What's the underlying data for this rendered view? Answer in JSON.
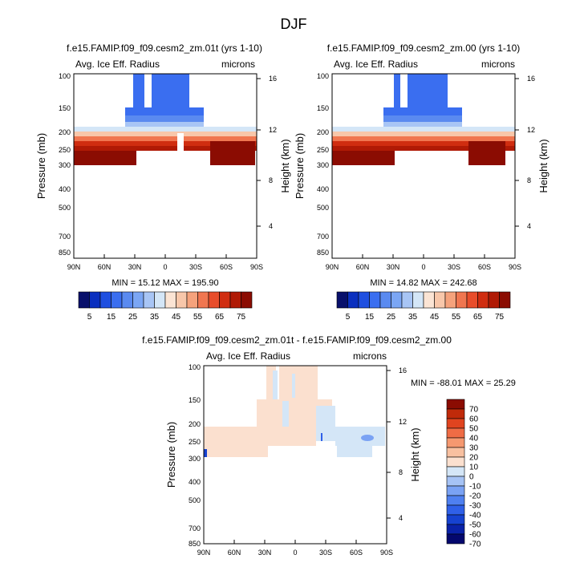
{
  "page": {
    "title": "DJF"
  },
  "colors": {
    "scale": [
      "#08106b",
      "#0a2fbf",
      "#1f4fe0",
      "#3a6ef0",
      "#5a8af0",
      "#7ba6f4",
      "#a8c5f5",
      "#d4e6f7",
      "#fbe4d4",
      "#f8c7aa",
      "#f5a27c",
      "#f07650",
      "#e84d2b",
      "#d02d10",
      "#b01a05",
      "#8b0c02"
    ],
    "diff_scale": [
      "#04086e",
      "#0a22a8",
      "#1642d0",
      "#2f60e8",
      "#4f80f0",
      "#7aa2f4",
      "#a6c3f5",
      "#d4e6f7",
      "#fbe0cf",
      "#f8c0a0",
      "#f59870",
      "#ef6c45",
      "#e0441f",
      "#c02a0a",
      "#8b0c02"
    ]
  },
  "chart_data": [
    {
      "type": "heatmap",
      "id": "panel-left",
      "title": "f.e15.FAMIP.f09_f09.cesm2_zm.01t (yrs 1-10)",
      "variable": "Avg. Ice Eff. Radius",
      "units": "microns",
      "ylabel_left": "Pressure (mb)",
      "ylabel_right": "Height (km)",
      "x_ticks": [
        "90N",
        "60N",
        "30N",
        "0",
        "30S",
        "60S",
        "90S"
      ],
      "y_ticks_pressure": [
        100,
        150,
        200,
        250,
        300,
        400,
        500,
        700,
        850
      ],
      "y_ticks_height": [
        16,
        12,
        8,
        4
      ],
      "stats": "MIN = 15.12   MAX = 195.90",
      "min": 15.12,
      "max": 195.9
    },
    {
      "type": "heatmap",
      "id": "panel-right",
      "title": "f.e15.FAMIP.f09_f09.cesm2_zm.00 (yrs 1-10)",
      "variable": "Avg. Ice Eff. Radius",
      "units": "microns",
      "ylabel_left": "Pressure (mb)",
      "ylabel_right": "Height (km)",
      "x_ticks": [
        "90N",
        "60N",
        "30N",
        "0",
        "30S",
        "60S",
        "90S"
      ],
      "y_ticks_pressure": [
        100,
        150,
        200,
        250,
        300,
        400,
        500,
        700,
        850
      ],
      "y_ticks_height": [
        16,
        12,
        8,
        4
      ],
      "stats": "MIN = 14.82   MAX = 242.68",
      "min": 14.82,
      "max": 242.68
    },
    {
      "type": "heatmap",
      "id": "panel-diff",
      "title": "f.e15.FAMIP.f09_f09.cesm2_zm.01t - f.e15.FAMIP.f09_f09.cesm2_zm.00",
      "variable": "Avg. Ice Eff. Radius",
      "units": "microns",
      "ylabel_left": "Pressure (mb)",
      "ylabel_right": "Height (km)",
      "x_ticks": [
        "90N",
        "60N",
        "30N",
        "0",
        "30S",
        "60S",
        "90S"
      ],
      "y_ticks_pressure": [
        100,
        150,
        200,
        250,
        300,
        400,
        500,
        700,
        850
      ],
      "y_ticks_height": [
        16,
        12,
        8,
        4
      ],
      "stats": "MIN = -88.01   MAX =  25.29",
      "min": -88.01,
      "max": 25.29
    }
  ],
  "colorbar_top": {
    "labels": [
      "5",
      "15",
      "25",
      "35",
      "45",
      "55",
      "65",
      "75"
    ]
  },
  "colorbar_diff": {
    "labels": [
      "70",
      "60",
      "50",
      "40",
      "30",
      "20",
      "10",
      "0",
      "-10",
      "-20",
      "-30",
      "-40",
      "-50",
      "-60",
      "-70"
    ]
  }
}
